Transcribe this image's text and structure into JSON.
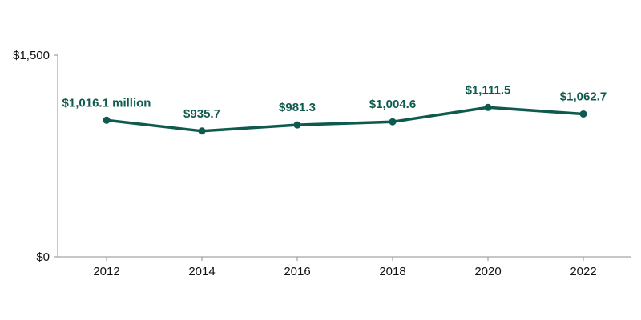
{
  "chart_data": {
    "type": "line",
    "title": "",
    "xlabel": "",
    "ylabel": "",
    "x": [
      "2012",
      "2014",
      "2016",
      "2018",
      "2020",
      "2022"
    ],
    "series": [
      {
        "values": [
          1016.1,
          935.7,
          981.3,
          1004.6,
          1111.5,
          1062.7
        ],
        "data_labels": [
          "$1,016.1 million",
          "$935.7",
          "$981.3",
          "$1,004.6",
          "$1,111.5",
          "$1,062.7"
        ]
      }
    ],
    "ylim": [
      0,
      1500
    ],
    "y_ticks": [
      {
        "value": 0,
        "label": "$0"
      },
      {
        "value": 1500,
        "label": "$1,500"
      }
    ],
    "grid": false,
    "legend": "none",
    "colors": {
      "series": "#0f5a4e",
      "axis": "#8f8f8f",
      "text": "#111111"
    }
  }
}
